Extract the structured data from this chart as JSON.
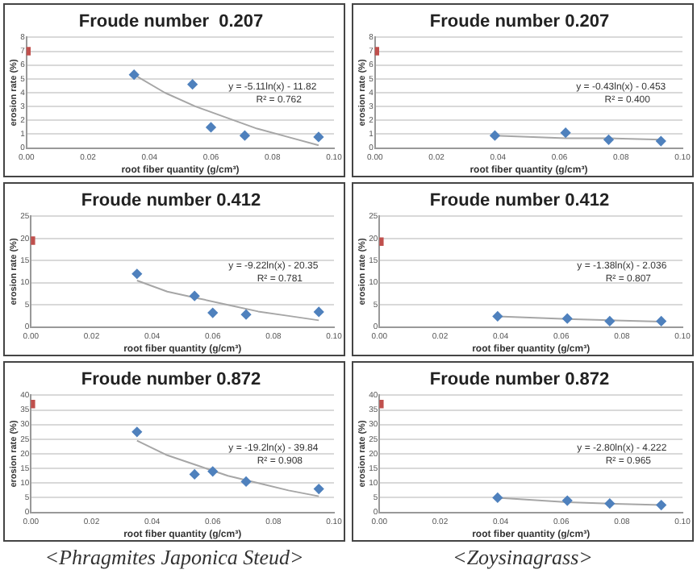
{
  "chart_data": [
    {
      "type": "scatter",
      "title": "Froude number  0.207",
      "xlabel": "root fiber quantity (g/cm³)",
      "ylabel": "erosion rate (%)",
      "xlim": [
        0,
        0.1
      ],
      "xticks": [
        {
          "value": 0,
          "label": "0.00"
        },
        {
          "value": 0.02,
          "label": "0.02"
        },
        {
          "value": 0.04,
          "label": "0.04"
        },
        {
          "value": 0.06,
          "label": "0.06"
        },
        {
          "value": 0.08,
          "label": "0.08"
        },
        {
          "value": 0.1,
          "label": "0.10"
        }
      ],
      "ylim": [
        0,
        8
      ],
      "yticks": [
        0,
        1,
        2,
        3,
        4,
        5,
        6,
        7,
        8
      ],
      "grid": "y",
      "legend": false,
      "annotations": [
        "y = -5.11ln(x) - 11.82",
        "R² = 0.762"
      ],
      "series": [
        {
          "type": "scatter",
          "color": "#c0504d",
          "marker": "square",
          "x": [
            0
          ],
          "values": [
            7
          ]
        },
        {
          "type": "scatter",
          "color": "#4f81bd",
          "marker": "diamond",
          "x": [
            0.035,
            0.054,
            0.06,
            0.071,
            0.095
          ],
          "values": [
            5.3,
            4.6,
            1.5,
            0.9,
            0.8
          ]
        },
        {
          "type": "line",
          "color": "#a6a6a6",
          "marker": "none",
          "x": [
            0.035,
            0.045,
            0.055,
            0.065,
            0.075,
            0.085,
            0.095
          ],
          "values": [
            5.3,
            4.0,
            3.0,
            2.2,
            1.4,
            0.8,
            0.2
          ]
        }
      ]
    },
    {
      "type": "scatter",
      "title": "Froude number 0.207",
      "xlabel": "root fiber quantity (g/cm³)",
      "ylabel": "erosion rate (%)",
      "xlim": [
        0,
        0.1
      ],
      "xticks": [
        {
          "value": 0,
          "label": "0.00"
        },
        {
          "value": 0.02,
          "label": "0.02"
        },
        {
          "value": 0.04,
          "label": "0.04"
        },
        {
          "value": 0.06,
          "label": "0.06"
        },
        {
          "value": 0.08,
          "label": "0.08"
        },
        {
          "value": 0.1,
          "label": "0.10"
        }
      ],
      "ylim": [
        0,
        8
      ],
      "yticks": [
        0,
        1,
        2,
        3,
        4,
        5,
        6,
        7,
        8
      ],
      "grid": "y",
      "legend": false,
      "annotations": [
        "y = -0.43ln(x) - 0.453",
        "R² = 0.400"
      ],
      "series": [
        {
          "type": "scatter",
          "color": "#c0504d",
          "marker": "square",
          "x": [
            0
          ],
          "values": [
            7
          ]
        },
        {
          "type": "scatter",
          "color": "#4f81bd",
          "marker": "diamond",
          "x": [
            0.039,
            0.062,
            0.076,
            0.093
          ],
          "values": [
            0.9,
            1.1,
            0.6,
            0.5
          ]
        },
        {
          "type": "line",
          "color": "#a6a6a6",
          "marker": "none",
          "x": [
            0.039,
            0.062,
            0.076,
            0.093
          ],
          "values": [
            0.9,
            0.7,
            0.7,
            0.6
          ]
        }
      ]
    },
    {
      "type": "scatter",
      "title": "Froude number 0.412",
      "xlabel": "root fiber quantity (g/cm³)",
      "ylabel": "erosion rate (%)",
      "xlim": [
        0,
        0.1
      ],
      "xticks": [
        {
          "value": 0,
          "label": "0.00"
        },
        {
          "value": 0.02,
          "label": "0.02"
        },
        {
          "value": 0.04,
          "label": "0.04"
        },
        {
          "value": 0.06,
          "label": "0.06"
        },
        {
          "value": 0.08,
          "label": "0.08"
        },
        {
          "value": 0.1,
          "label": "0.10"
        }
      ],
      "ylim": [
        0,
        25
      ],
      "yticks": [
        0,
        5,
        10,
        15,
        20,
        25
      ],
      "grid": "y",
      "legend": false,
      "annotations": [
        "y = -9.22ln(x) - 20.35",
        "R² = 0.781"
      ],
      "series": [
        {
          "type": "scatter",
          "color": "#c0504d",
          "marker": "square",
          "x": [
            0
          ],
          "values": [
            19.5
          ]
        },
        {
          "type": "scatter",
          "color": "#4f81bd",
          "marker": "diamond",
          "x": [
            0.035,
            0.054,
            0.06,
            0.071,
            0.095
          ],
          "values": [
            12,
            7,
            3.2,
            2.8,
            3.4
          ]
        },
        {
          "type": "line",
          "color": "#a6a6a6",
          "marker": "none",
          "x": [
            0.035,
            0.045,
            0.055,
            0.065,
            0.075,
            0.085,
            0.095
          ],
          "values": [
            10.5,
            8,
            6.5,
            5,
            3.5,
            2.5,
            1.5
          ]
        }
      ]
    },
    {
      "type": "scatter",
      "title": "Froude number 0.412",
      "xlabel": "root fiber quantity (g/cm³)",
      "ylabel": "erosion rate (%)",
      "xlim": [
        0,
        0.1
      ],
      "xticks": [
        {
          "value": 0,
          "label": "0.00"
        },
        {
          "value": 0.02,
          "label": "0.02"
        },
        {
          "value": 0.04,
          "label": "0.04"
        },
        {
          "value": 0.06,
          "label": "0.06"
        },
        {
          "value": 0.08,
          "label": "0.08"
        },
        {
          "value": 0.1,
          "label": "0.10"
        }
      ],
      "ylim": [
        0,
        25
      ],
      "yticks": [
        0,
        5,
        10,
        15,
        20,
        25
      ],
      "grid": "y",
      "legend": false,
      "annotations": [
        "y = -1.38ln(x) - 2.036",
        "R² = 0.807"
      ],
      "series": [
        {
          "type": "scatter",
          "color": "#c0504d",
          "marker": "square",
          "x": [
            0
          ],
          "values": [
            19.3
          ]
        },
        {
          "type": "scatter",
          "color": "#4f81bd",
          "marker": "diamond",
          "x": [
            0.039,
            0.062,
            0.076,
            0.093
          ],
          "values": [
            2.4,
            1.9,
            1.3,
            1.3
          ]
        },
        {
          "type": "line",
          "color": "#a6a6a6",
          "marker": "none",
          "x": [
            0.039,
            0.062,
            0.076,
            0.093
          ],
          "values": [
            2.4,
            1.8,
            1.5,
            1.2
          ]
        }
      ]
    },
    {
      "type": "scatter",
      "title": "Froude number 0.872",
      "xlabel": "root fiber quantity (g/cm³)",
      "ylabel": "erosion rate (%)",
      "xlim": [
        0,
        0.1
      ],
      "xticks": [
        {
          "value": 0,
          "label": "0.00"
        },
        {
          "value": 0.02,
          "label": "0.02"
        },
        {
          "value": 0.04,
          "label": "0.04"
        },
        {
          "value": 0.06,
          "label": "0.06"
        },
        {
          "value": 0.08,
          "label": "0.08"
        },
        {
          "value": 0.1,
          "label": "0.10"
        }
      ],
      "ylim": [
        0,
        40
      ],
      "yticks": [
        0,
        5,
        10,
        15,
        20,
        25,
        30,
        35,
        40
      ],
      "grid": "y",
      "legend": false,
      "annotations": [
        "y = -19.2ln(x) - 39.84",
        "R² = 0.908",
        "<Phragmites Japonica Steud>"
      ],
      "series": [
        {
          "type": "scatter",
          "color": "#c0504d",
          "marker": "square",
          "x": [
            0
          ],
          "values": [
            37
          ]
        },
        {
          "type": "scatter",
          "color": "#4f81bd",
          "marker": "diamond",
          "x": [
            0.035,
            0.054,
            0.06,
            0.071,
            0.095
          ],
          "values": [
            27.5,
            13,
            14,
            10.5,
            8
          ]
        },
        {
          "type": "line",
          "color": "#a6a6a6",
          "marker": "none",
          "x": [
            0.035,
            0.045,
            0.055,
            0.065,
            0.075,
            0.085,
            0.095
          ],
          "values": [
            24.5,
            19.5,
            16,
            12.5,
            10,
            7.5,
            5.5
          ]
        }
      ]
    },
    {
      "type": "scatter",
      "title": "Froude number 0.872",
      "xlabel": "root fiber quantity (g/cm³)",
      "ylabel": "erosion rate (%)",
      "xlim": [
        0,
        0.1
      ],
      "xticks": [
        {
          "value": 0,
          "label": "0.00"
        },
        {
          "value": 0.02,
          "label": "0.02"
        },
        {
          "value": 0.04,
          "label": "0.04"
        },
        {
          "value": 0.06,
          "label": "0.06"
        },
        {
          "value": 0.08,
          "label": "0.08"
        },
        {
          "value": 0.1,
          "label": "0.10"
        }
      ],
      "ylim": [
        0,
        40
      ],
      "yticks": [
        0,
        5,
        10,
        15,
        20,
        25,
        30,
        35,
        40
      ],
      "grid": "y",
      "legend": false,
      "annotations": [
        "y = -2.80ln(x) - 4.222",
        "R² = 0.965",
        "<Zoysinagrass>"
      ],
      "series": [
        {
          "type": "scatter",
          "color": "#c0504d",
          "marker": "square",
          "x": [
            0
          ],
          "values": [
            37
          ]
        },
        {
          "type": "scatter",
          "color": "#4f81bd",
          "marker": "diamond",
          "x": [
            0.039,
            0.062,
            0.076,
            0.093
          ],
          "values": [
            5,
            4,
            3,
            2.5
          ]
        },
        {
          "type": "line",
          "color": "#a6a6a6",
          "marker": "none",
          "x": [
            0.039,
            0.062,
            0.076,
            0.093
          ],
          "values": [
            5,
            3.5,
            3,
            2.5
          ]
        }
      ]
    }
  ]
}
